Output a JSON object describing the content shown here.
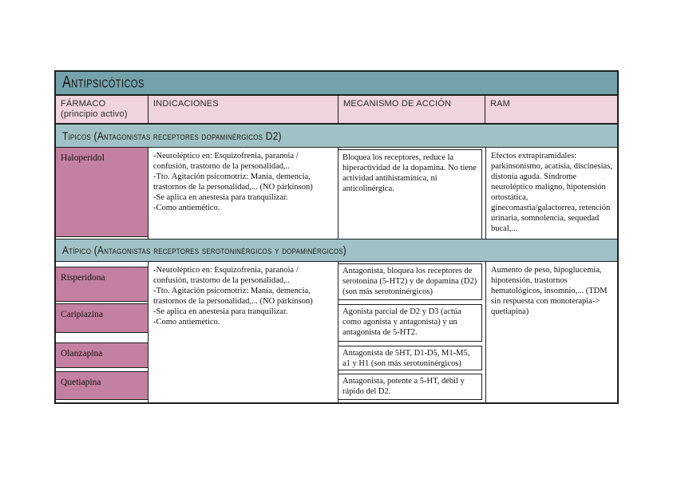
{
  "table": {
    "title": "Antipsicóticos",
    "columns": [
      {
        "label": "FÁRMACO",
        "sublabel": "(principio activo)"
      },
      {
        "label": "INDICACIONES"
      },
      {
        "label": "MECANISMO DE ACCIÓN"
      },
      {
        "label": "RAM"
      }
    ]
  },
  "typical": {
    "section_label": "Típicos (Antagonistas receptores dopaminérgicos D2)",
    "drug": "Haloperidol",
    "indications": "-Neuroléptico en: Esquizofrenia, paranoia / confusión, trastorno de la personalidad,..\n-Tto. Agitación psicomotriz: Manía, demencia, trastornos de la personalidad,... (NO párkinson)\n-Se aplica en anestesia para tranquilizar.\n-Como antiemético.",
    "mechanism": "Bloquea los receptores, reduce la hiperactividad de la dopamina. No tiene actividad antihistamínica, ni anticolinérgica.",
    "ram": "Efectos extrapiramidales: parkinsonismo, acatisia, discinesias, distonía aguda. Síndrome neuroléptico maligno, hipotensión ortostática, ginecomastia/galactorrea, retención urinaria, somnolencia, sequedad bucal,..."
  },
  "atypical": {
    "section_label": "Atípico (Antagonistas receptores serotoninérgicos y dopaminérgicos)",
    "indications": "-Neuroléptico en: Esquizofrenia, paranoia / confusión, trastorno de la personalidad,..\n-Tto. Agitación psicomotriz: Manía, demencia, trastornos de la personalidad,... (NO párkinson)\n-Se aplica en anestesia para tranquilizar.\n-Como antiemético.",
    "ram": "Aumento de peso, hipoglucemia, hipotensión, trastornos hematológicos, insomnio,... (TDM sin respuesta con monoterapia-> quetiapina)",
    "drugs": [
      {
        "name": "Risperidona",
        "mechanism": "Antagonista, bloquea los receptores de serotonina (5-HT2) y de dopamina (D2) (son más serotoninérgicos)"
      },
      {
        "name": "Caripiazina",
        "mechanism": "Agonista parcial de D2 y D3 (actúa como agonista y antagonista) y un antagonista de 5-HT2."
      },
      {
        "name": "Olanzapina",
        "mechanism": "Antagonista de 5HT, D1-D5, M1-M5, a1 y H1 (son más serotoninérgicos)"
      },
      {
        "name": "Quetiapina",
        "mechanism": "Antagonista, potente a 5-HT, débil y rápido del D2."
      }
    ]
  },
  "colors": {
    "title_bar": "#74A2AB",
    "section_bar": "#A0C2C6",
    "header_row": "#EFD3DD",
    "drug_cell": "#C480A0",
    "border": "#1f1f1f"
  }
}
